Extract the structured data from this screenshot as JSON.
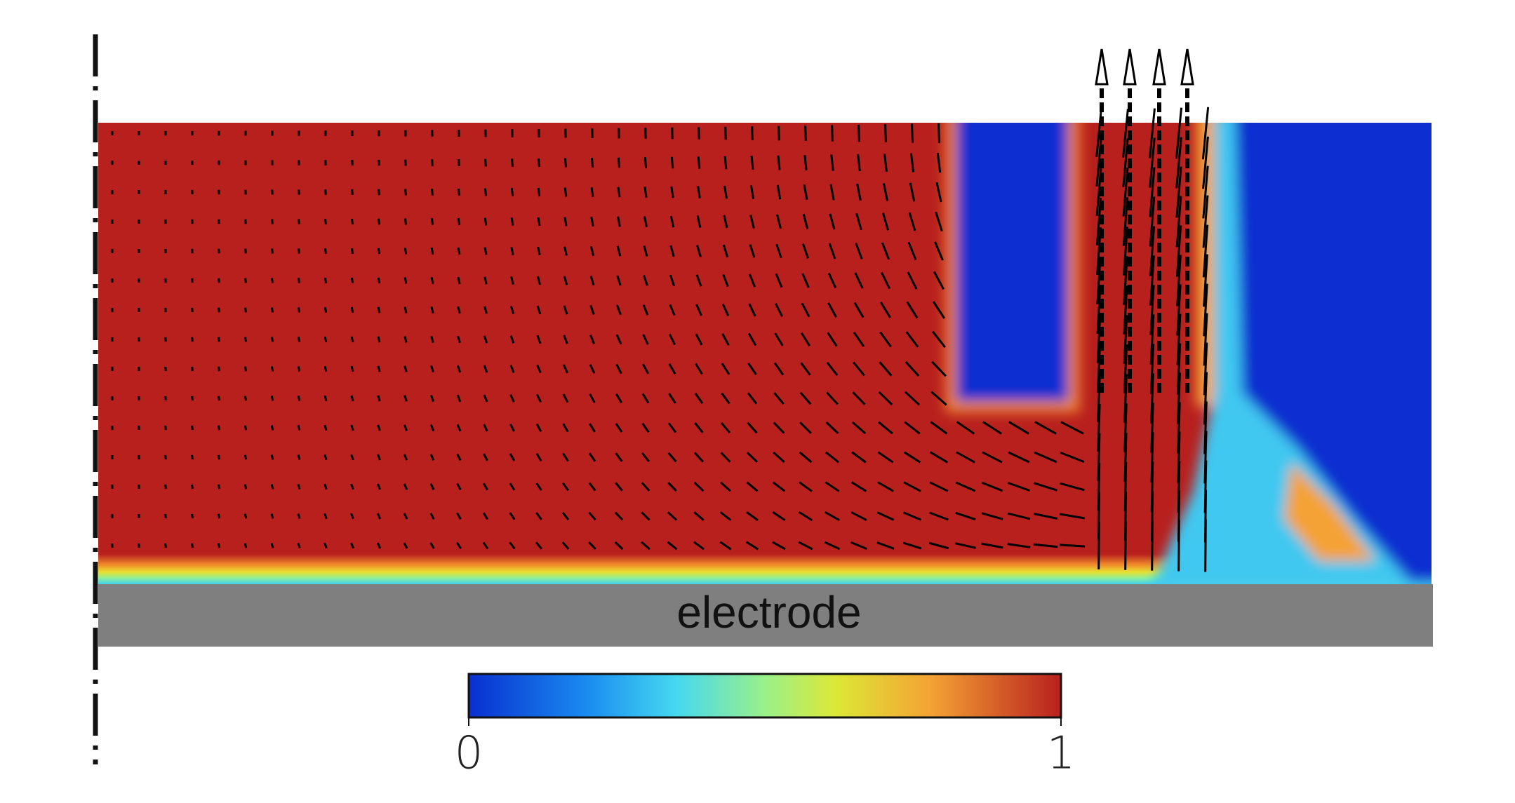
{
  "electrode": {
    "label": "electrode"
  },
  "colorbar": {
    "lim": [
      0,
      1
    ],
    "ticks": [
      0,
      1
    ]
  }
}
